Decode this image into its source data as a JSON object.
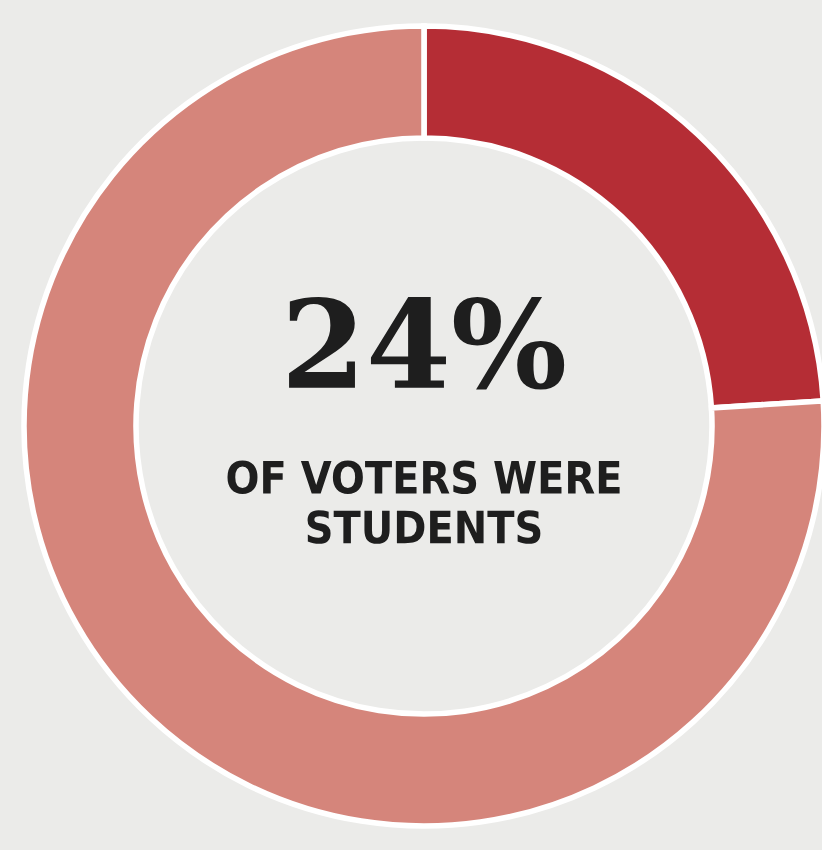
{
  "chart_data": {
    "type": "donut",
    "categories": [
      null,
      null
    ],
    "values": [
      24,
      76
    ],
    "colors": [
      "#b52d35",
      "#d5857b"
    ],
    "annotations": [
      "24%",
      "OF VOTERS WERE STUDENTS"
    ]
  }
}
